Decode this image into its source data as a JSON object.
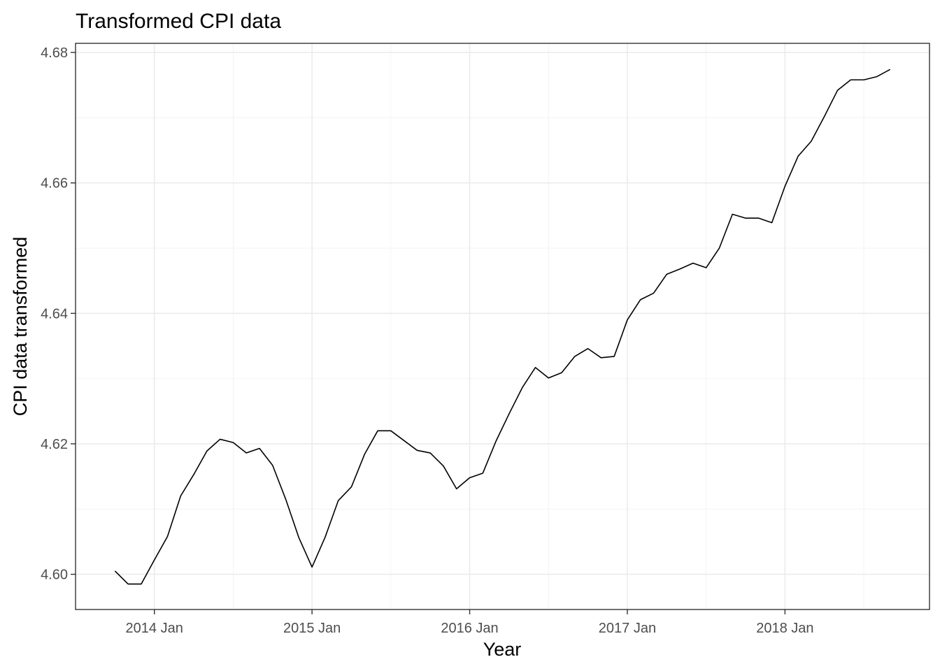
{
  "chart_data": {
    "type": "line",
    "title": "Transformed CPI data",
    "xlabel": "Year",
    "ylabel": "CPI data transformed",
    "x_tick_labels": [
      "2014 Jan",
      "2015 Jan",
      "2016 Jan",
      "2017 Jan",
      "2018 Jan"
    ],
    "x_tick_dates": [
      "2014-01",
      "2015-01",
      "2016-01",
      "2017-01",
      "2018-01"
    ],
    "y_tick_labels": [
      "4.60",
      "4.62",
      "4.64",
      "4.66",
      "4.68"
    ],
    "y_ticks": [
      4.6,
      4.62,
      4.64,
      4.66,
      4.68
    ],
    "xlim": [
      "2013-07",
      "2018-12"
    ],
    "ylim": [
      4.5946,
      4.6814
    ],
    "grid": true,
    "legend": "none",
    "series": [
      {
        "color": "#000000",
        "x": [
          "2013-10",
          "2013-11",
          "2013-12",
          "2014-01",
          "2014-02",
          "2014-03",
          "2014-04",
          "2014-05",
          "2014-06",
          "2014-07",
          "2014-08",
          "2014-09",
          "2014-10",
          "2014-11",
          "2014-12",
          "2015-01",
          "2015-02",
          "2015-03",
          "2015-04",
          "2015-05",
          "2015-06",
          "2015-07",
          "2015-08",
          "2015-09",
          "2015-10",
          "2015-11",
          "2015-12",
          "2016-01",
          "2016-02",
          "2016-03",
          "2016-04",
          "2016-05",
          "2016-06",
          "2016-07",
          "2016-08",
          "2016-09",
          "2016-10",
          "2016-11",
          "2016-12",
          "2017-01",
          "2017-02",
          "2017-03",
          "2017-04",
          "2017-05",
          "2017-06",
          "2017-07",
          "2017-08",
          "2017-09",
          "2017-10",
          "2017-11",
          "2017-12",
          "2018-01",
          "2018-02",
          "2018-03",
          "2018-04",
          "2018-05",
          "2018-06",
          "2018-07",
          "2018-08",
          "2018-09"
        ],
        "y": [
          4.6005,
          4.5985,
          4.5985,
          4.6022,
          4.6058,
          4.612,
          4.6153,
          4.6189,
          4.6207,
          4.6202,
          4.6186,
          4.6193,
          4.6167,
          4.6115,
          4.6056,
          4.6011,
          4.6057,
          4.6113,
          4.6134,
          4.6184,
          4.622,
          4.622,
          4.6205,
          4.619,
          4.6186,
          4.6166,
          4.6131,
          4.6148,
          4.6155,
          4.6204,
          4.6246,
          4.6286,
          4.6317,
          4.6301,
          4.6309,
          4.6334,
          4.6346,
          4.6332,
          4.6334,
          4.639,
          4.6421,
          4.6431,
          4.646,
          4.6468,
          4.6477,
          4.647,
          4.65,
          4.6552,
          4.6546,
          4.6546,
          4.6539,
          4.6595,
          4.6641,
          4.6664,
          4.6702,
          4.6742,
          4.6758,
          4.6758,
          4.6763,
          4.6774
        ]
      }
    ]
  }
}
